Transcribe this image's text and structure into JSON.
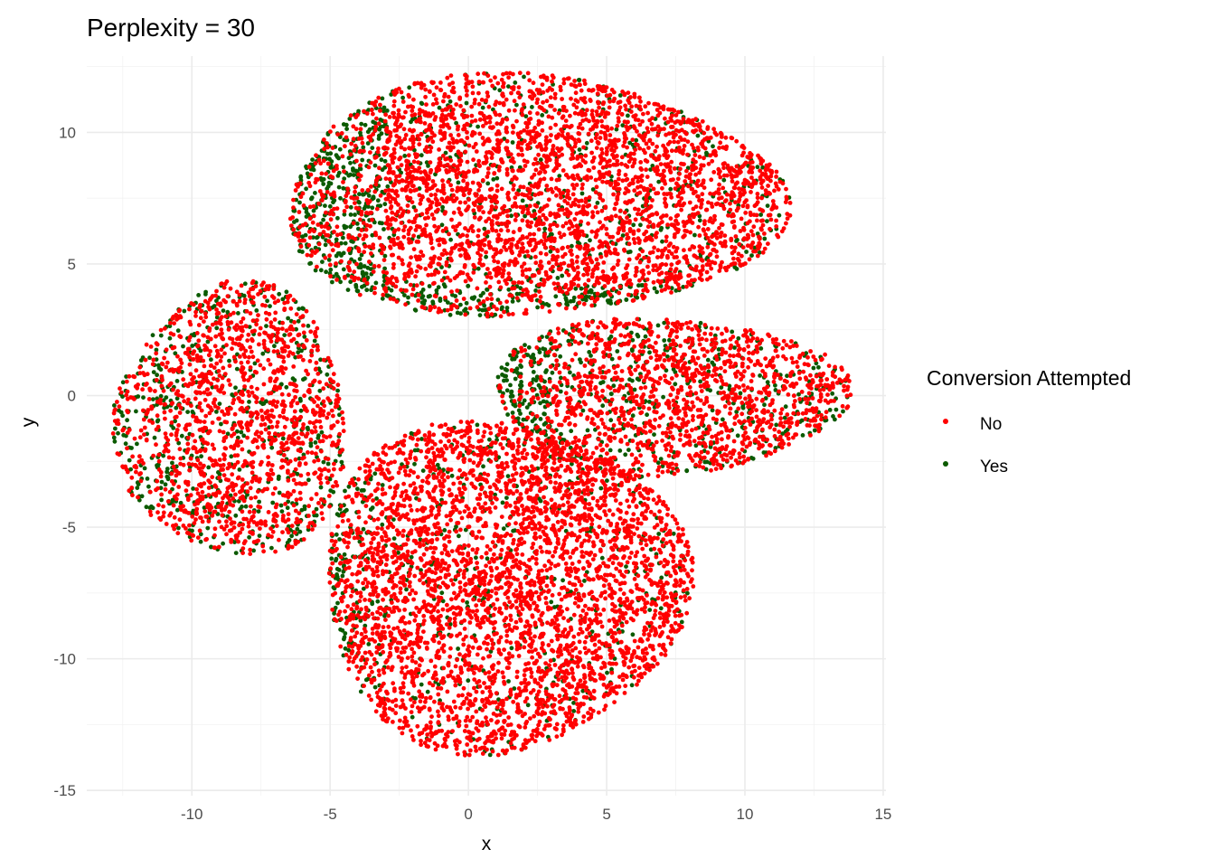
{
  "chart_data": {
    "type": "scatter",
    "title": "Perplexity = 30",
    "xlabel": "x",
    "ylabel": "y",
    "xlim": [
      -13.8,
      15.1
    ],
    "ylim": [
      -15.2,
      12.9
    ],
    "x_ticks": [
      -10,
      -5,
      0,
      5,
      10,
      15
    ],
    "y_ticks": [
      -15,
      -10,
      -5,
      0,
      5,
      10
    ],
    "x_tick_labels": [
      "-10",
      "-5",
      "0",
      "5",
      "10",
      "15"
    ],
    "y_tick_labels": [
      "-15",
      "-10",
      "-5",
      "0",
      "5",
      "10"
    ],
    "grid": true,
    "legend": {
      "title": "Conversion Attempted",
      "placement": "right",
      "entries": [
        {
          "label": "No",
          "color": "#ff0000"
        },
        {
          "label": "Yes",
          "color": "#0b5a00"
        }
      ]
    },
    "clusters": [
      {
        "name": "top",
        "center": [
          2.2,
          7.5
        ],
        "rx": 9.0,
        "ry": 4.6,
        "approx_points": 4200,
        "yes_share": 0.12,
        "yes_concentration": "lower-left edge"
      },
      {
        "name": "left",
        "center": [
          -8.5,
          -1.0
        ],
        "rx": 4.2,
        "ry": 5.2,
        "approx_points": 1900,
        "yes_share": 0.22,
        "yes_concentration": "scattered, left edge"
      },
      {
        "name": "bottom",
        "center": [
          1.2,
          -7.2
        ],
        "rx": 6.6,
        "ry": 6.3,
        "approx_points": 4200,
        "yes_share": 0.1,
        "yes_concentration": "left edge"
      },
      {
        "name": "right",
        "center": [
          7.2,
          0.0
        ],
        "rx": 6.4,
        "ry": 3.0,
        "approx_points": 1900,
        "yes_share": 0.22,
        "yes_concentration": "left end"
      }
    ]
  }
}
